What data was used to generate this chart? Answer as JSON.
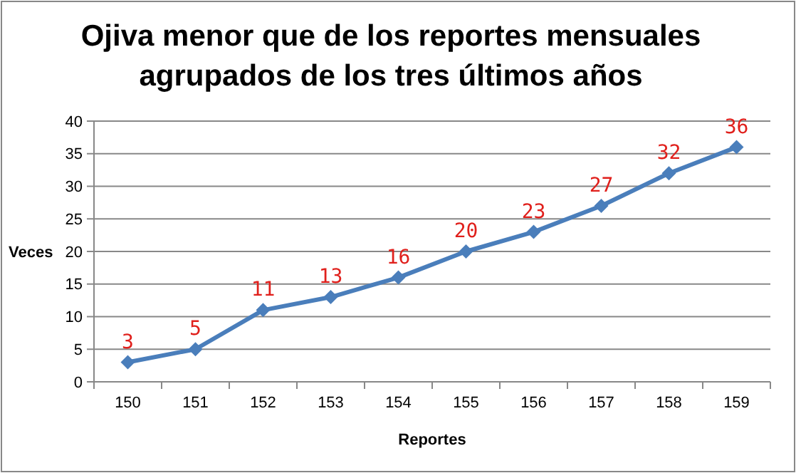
{
  "chart_data": {
    "type": "line",
    "title": "Ojiva menor que de los reportes mensuales agrupados de los tres últimos años",
    "xlabel": "Reportes",
    "ylabel": "Veces",
    "categories": [
      "150",
      "151",
      "152",
      "153",
      "154",
      "155",
      "156",
      "157",
      "158",
      "159"
    ],
    "series": [
      {
        "color": "#4a7ebb",
        "values": [
          3,
          5,
          11,
          13,
          16,
          20,
          23,
          27,
          32,
          36
        ]
      }
    ],
    "ylim": [
      0,
      40
    ],
    "yticks": [
      0,
      5,
      10,
      15,
      20,
      25,
      30,
      35,
      40
    ],
    "grid": "y",
    "marker": "diamond",
    "line_style": "solid",
    "data_labels": true
  }
}
